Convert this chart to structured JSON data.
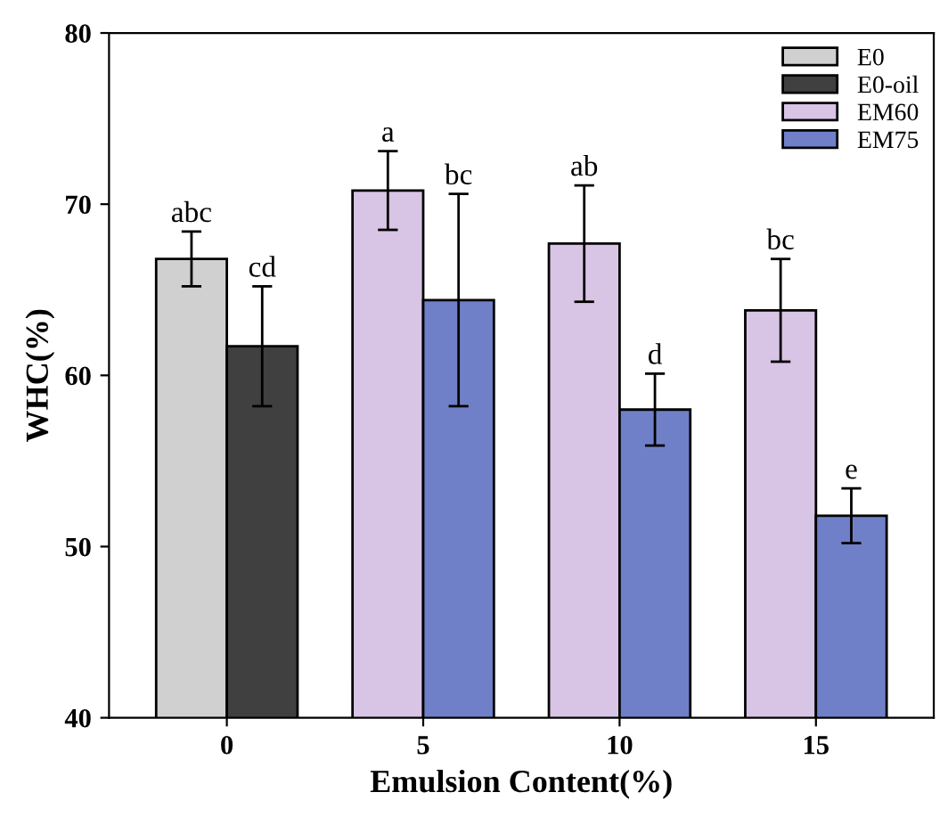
{
  "chart_data": {
    "type": "bar",
    "xlabel": "Emulsion Content(%)",
    "ylabel": "WHC(%)",
    "categories": [
      "0",
      "5",
      "10",
      "15"
    ],
    "ylim": [
      40,
      80
    ],
    "yticks": [
      40,
      50,
      60,
      70,
      80
    ],
    "legend": "top right",
    "grid": false,
    "annotations": [
      "abc",
      "cd",
      "a",
      "bc",
      "ab",
      "d",
      "bc",
      "e"
    ],
    "series": [
      {
        "name": "E0",
        "color": "#d0d0d0",
        "values": [
          66.8,
          null,
          null,
          null
        ],
        "errors": [
          1.6,
          null,
          null,
          null
        ]
      },
      {
        "name": "E0-oil",
        "color": "#404040",
        "values": [
          61.7,
          null,
          null,
          null
        ],
        "errors": [
          3.5,
          null,
          null,
          null
        ]
      },
      {
        "name": "EM60",
        "color": "#d8c4e4",
        "values": [
          null,
          70.8,
          67.7,
          63.8
        ],
        "errors": [
          null,
          2.3,
          3.4,
          3.0
        ]
      },
      {
        "name": "EM75",
        "color": "#7080c8",
        "values": [
          null,
          64.4,
          58.0,
          51.8
        ],
        "errors": [
          null,
          6.2,
          2.1,
          1.6
        ]
      }
    ]
  }
}
